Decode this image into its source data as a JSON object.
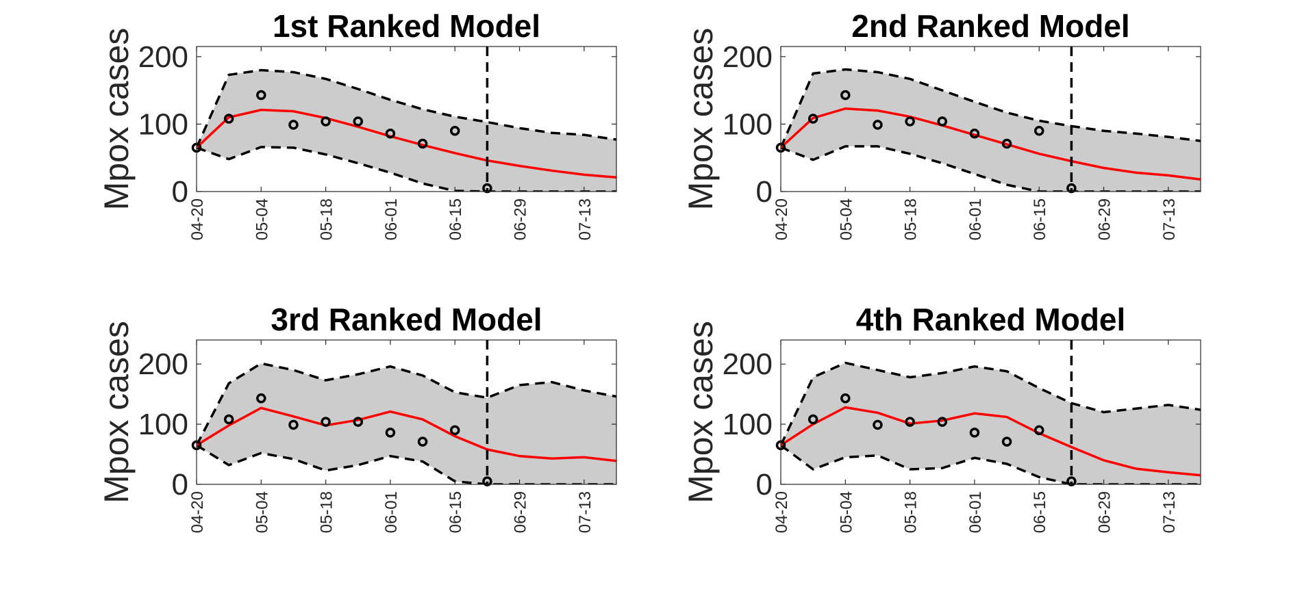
{
  "chart_data": [
    {
      "type": "line",
      "title": "1st Ranked Model",
      "ylabel": "Mpox cases",
      "ylim": [
        0,
        215
      ],
      "yticks": [
        0,
        100,
        200
      ],
      "xticks": [
        "04-20",
        "05-04",
        "05-18",
        "06-01",
        "06-15",
        "06-29",
        "07-13"
      ],
      "x_start": "04-20",
      "x_end": "07-20",
      "grid": false,
      "forecast_start": "06-22",
      "colors": {
        "fit": "#ff0000",
        "band": "#cccccc",
        "bounds": "#000000",
        "observed": "#000000"
      },
      "observed": {
        "x": [
          "04-20",
          "04-27",
          "05-04",
          "05-11",
          "05-18",
          "05-25",
          "06-01",
          "06-08",
          "06-15",
          "06-22"
        ],
        "y": [
          65,
          108,
          143,
          99,
          104,
          104,
          86,
          71,
          90,
          5
        ]
      },
      "fit": {
        "x": [
          "04-20",
          "04-27",
          "05-04",
          "05-11",
          "05-18",
          "05-25",
          "06-01",
          "06-08",
          "06-15",
          "06-22",
          "06-29",
          "07-06",
          "07-13",
          "07-20"
        ],
        "y": [
          65,
          110,
          121,
          119,
          109,
          96,
          82,
          69,
          57,
          46,
          38,
          31,
          25,
          21
        ]
      },
      "upper": [
        65,
        173,
        180,
        177,
        167,
        152,
        136,
        122,
        111,
        103,
        94,
        87,
        84,
        77
      ],
      "lower": [
        65,
        48,
        66,
        65,
        55,
        42,
        28,
        12,
        1,
        0,
        0,
        0,
        0,
        0
      ]
    },
    {
      "type": "line",
      "title": "2nd Ranked Model",
      "ylabel": "Mpox cases",
      "ylim": [
        0,
        215
      ],
      "yticks": [
        0,
        100,
        200
      ],
      "xticks": [
        "04-20",
        "05-04",
        "05-18",
        "06-01",
        "06-15",
        "06-29",
        "07-13"
      ],
      "x_start": "04-20",
      "x_end": "07-20",
      "grid": false,
      "forecast_start": "06-22",
      "colors": {
        "fit": "#ff0000",
        "band": "#cccccc",
        "bounds": "#000000",
        "observed": "#000000"
      },
      "observed": {
        "x": [
          "04-20",
          "04-27",
          "05-04",
          "05-11",
          "05-18",
          "05-25",
          "06-01",
          "06-08",
          "06-15",
          "06-22"
        ],
        "y": [
          65,
          108,
          143,
          99,
          104,
          104,
          86,
          71,
          90,
          5
        ]
      },
      "fit": {
        "x": [
          "04-20",
          "04-27",
          "05-04",
          "05-11",
          "05-18",
          "05-25",
          "06-01",
          "06-08",
          "06-15",
          "06-22",
          "06-29",
          "07-06",
          "07-13",
          "07-20"
        ],
        "y": [
          65,
          109,
          123,
          120,
          111,
          98,
          84,
          70,
          56,
          45,
          35,
          28,
          24,
          18
        ]
      },
      "upper": [
        65,
        175,
        181,
        177,
        167,
        150,
        133,
        117,
        105,
        97,
        90,
        86,
        81,
        75
      ],
      "lower": [
        65,
        47,
        67,
        67,
        56,
        42,
        26,
        10,
        0,
        0,
        0,
        0,
        0,
        0
      ]
    },
    {
      "type": "line",
      "title": "3rd Ranked Model",
      "ylabel": "Mpox cases",
      "ylim": [
        0,
        240
      ],
      "yticks": [
        0,
        100,
        200
      ],
      "xticks": [
        "04-20",
        "05-04",
        "05-18",
        "06-01",
        "06-15",
        "06-29",
        "07-13"
      ],
      "x_start": "04-20",
      "x_end": "07-20",
      "grid": false,
      "forecast_start": "06-22",
      "colors": {
        "fit": "#ff0000",
        "band": "#cccccc",
        "bounds": "#000000",
        "observed": "#000000"
      },
      "observed": {
        "x": [
          "04-20",
          "04-27",
          "05-04",
          "05-11",
          "05-18",
          "05-25",
          "06-01",
          "06-08",
          "06-15",
          "06-22"
        ],
        "y": [
          65,
          108,
          143,
          99,
          104,
          104,
          86,
          71,
          90,
          5
        ]
      },
      "fit": {
        "x": [
          "04-20",
          "04-27",
          "05-04",
          "05-11",
          "05-18",
          "05-25",
          "06-01",
          "06-08",
          "06-15",
          "06-22",
          "06-29",
          "07-06",
          "07-13",
          "07-20"
        ],
        "y": [
          65,
          98,
          127,
          113,
          98,
          107,
          121,
          108,
          80,
          58,
          47,
          43,
          45,
          39
        ]
      },
      "upper": [
        65,
        168,
        201,
        190,
        173,
        183,
        196,
        181,
        153,
        144,
        165,
        170,
        156,
        146
      ],
      "lower": [
        65,
        32,
        52,
        42,
        23,
        32,
        47,
        38,
        5,
        0,
        0,
        0,
        0,
        0
      ]
    },
    {
      "type": "line",
      "title": "4th Ranked Model",
      "ylabel": "Mpox cases",
      "ylim": [
        0,
        240
      ],
      "yticks": [
        0,
        100,
        200
      ],
      "xticks": [
        "04-20",
        "05-04",
        "05-18",
        "06-01",
        "06-15",
        "06-29",
        "07-13"
      ],
      "x_start": "04-20",
      "x_end": "07-20",
      "grid": false,
      "forecast_start": "06-22",
      "colors": {
        "fit": "#ff0000",
        "band": "#cccccc",
        "bounds": "#000000",
        "observed": "#000000"
      },
      "observed": {
        "x": [
          "04-20",
          "04-27",
          "05-04",
          "05-11",
          "05-18",
          "05-25",
          "06-01",
          "06-08",
          "06-15",
          "06-22"
        ],
        "y": [
          65,
          108,
          143,
          99,
          104,
          104,
          86,
          71,
          90,
          5
        ]
      },
      "fit": {
        "x": [
          "04-20",
          "04-27",
          "05-04",
          "05-11",
          "05-18",
          "05-25",
          "06-01",
          "06-08",
          "06-15",
          "06-22",
          "06-29",
          "07-06",
          "07-13",
          "07-20"
        ],
        "y": [
          65,
          100,
          128,
          119,
          101,
          106,
          118,
          112,
          85,
          62,
          40,
          26,
          20,
          15
        ]
      },
      "upper": [
        65,
        178,
        202,
        190,
        178,
        185,
        196,
        188,
        160,
        135,
        120,
        126,
        132,
        124
      ],
      "lower": [
        65,
        25,
        45,
        48,
        25,
        27,
        44,
        34,
        12,
        0,
        0,
        0,
        0,
        0
      ]
    }
  ]
}
